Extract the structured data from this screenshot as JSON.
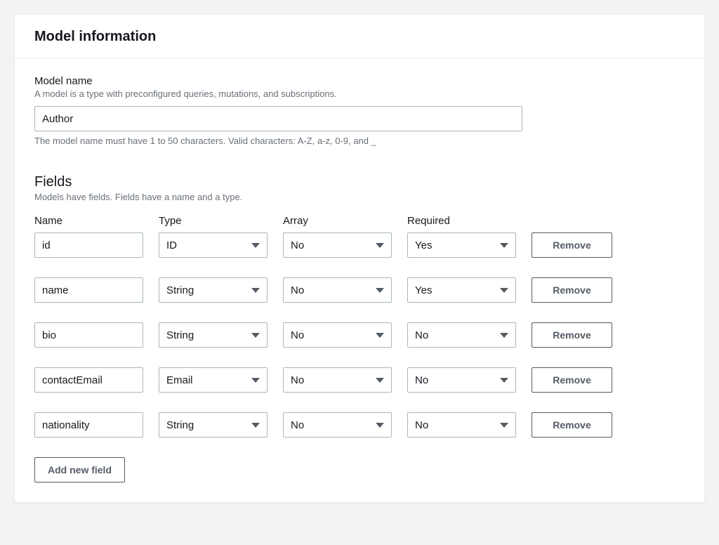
{
  "panel": {
    "title": "Model information"
  },
  "modelName": {
    "label": "Model name",
    "description": "A model is a type with preconfigured queries, mutations, and subscriptions.",
    "value": "Author",
    "hint": "The model name must have 1 to 50 characters. Valid characters: A-Z, a-z, 0-9, and _"
  },
  "fieldsSection": {
    "title": "Fields",
    "description": "Models have fields. Fields have a name and a type.",
    "columns": {
      "name": "Name",
      "type": "Type",
      "array": "Array",
      "required": "Required"
    },
    "rows": [
      {
        "name": "id",
        "type": "ID",
        "array": "No",
        "required": "Yes"
      },
      {
        "name": "name",
        "type": "String",
        "array": "No",
        "required": "Yes"
      },
      {
        "name": "bio",
        "type": "String",
        "array": "No",
        "required": "No"
      },
      {
        "name": "contactEmail",
        "type": "Email",
        "array": "No",
        "required": "No"
      },
      {
        "name": "nationality",
        "type": "String",
        "array": "No",
        "required": "No"
      }
    ],
    "removeLabel": "Remove",
    "addLabel": "Add new field"
  },
  "colors": {
    "pageBg": "#f2f3f3",
    "panelBg": "#ffffff",
    "border": "#eaeded",
    "inputBorder": "#aab7b8",
    "text": "#16191f",
    "muted": "#687078",
    "btnText": "#545b64",
    "caret": "#545b64"
  }
}
